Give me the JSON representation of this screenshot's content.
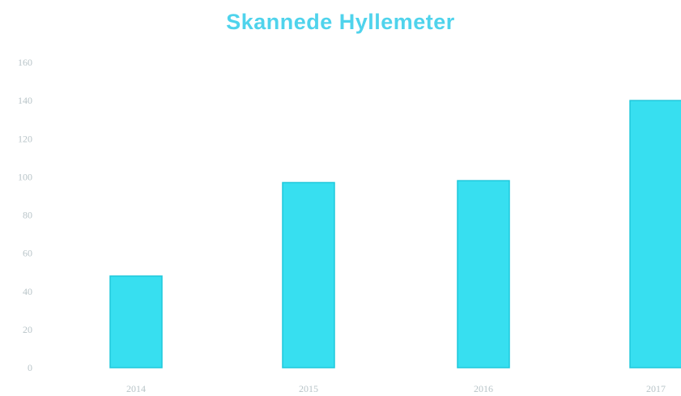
{
  "chart_data": {
    "type": "bar",
    "title": "Skannede Hyllemeter",
    "xlabel": "",
    "ylabel": "",
    "categories": [
      "2014",
      "2015",
      "2016",
      "2017"
    ],
    "values": [
      48,
      97,
      98,
      140
    ],
    "ylim": [
      0,
      160
    ],
    "yticks": [
      "0",
      "20",
      "40",
      "60",
      "80",
      "100",
      "120",
      "140",
      "160"
    ],
    "grid": false,
    "legend": "none",
    "colors": {
      "bar_fill": "#37dff0",
      "bar_stroke": "#1fc8dc",
      "title": "#4fd3ec",
      "tick_label": "#b8c4c8"
    }
  }
}
